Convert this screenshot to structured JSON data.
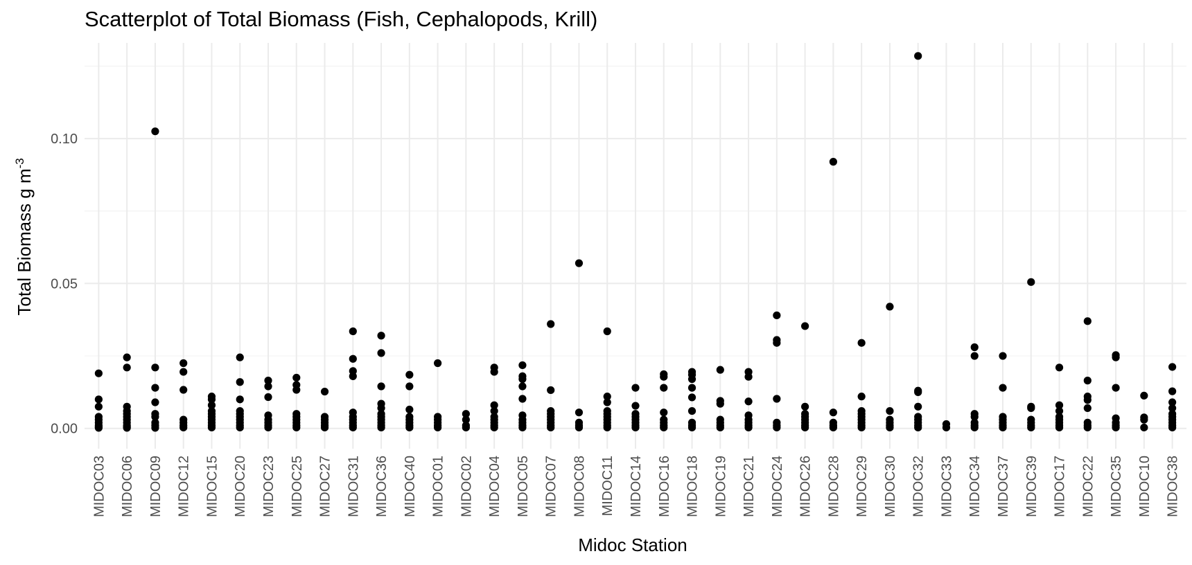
{
  "chart_data": {
    "type": "scatter",
    "title": "Scatterplot of Total Biomass (Fish, Cephalopods, Krill)",
    "xlabel": "Midoc Station",
    "ylabel": "Total Biomass g m",
    "ylabel_superscript": "-3",
    "ylim": [
      -0.007,
      0.133
    ],
    "y_ticks": [
      0.0,
      0.05,
      0.1
    ],
    "y_tick_labels": [
      "0.00",
      "0.05",
      "0.10"
    ],
    "y_minor_ticks": [
      0.025,
      0.075,
      0.125
    ],
    "grid": true,
    "legend": "none",
    "point_color": "#000000",
    "categories": [
      "MIDOC03",
      "MIDOC06",
      "MIDOC09",
      "MIDOC12",
      "MIDOC15",
      "MIDOC20",
      "MIDOC23",
      "MIDOC25",
      "MIDOC27",
      "MIDOC31",
      "MIDOC36",
      "MIDOC40",
      "MIDOC01",
      "MIDOC02",
      "MIDOC04",
      "MIDOC05",
      "MIDOC07",
      "MIDOC08",
      "MIDOC11",
      "MIDOC14",
      "MIDOC16",
      "MIDOC18",
      "MIDOC19",
      "MIDOC21",
      "MIDOC24",
      "MIDOC26",
      "MIDOC28",
      "MIDOC29",
      "MIDOC30",
      "MIDOC32",
      "MIDOC33",
      "MIDOC34",
      "MIDOC37",
      "MIDOC39",
      "MIDOC17",
      "MIDOC22",
      "MIDOC35",
      "MIDOC10",
      "MIDOC38"
    ],
    "values": [
      [
        0.019,
        0.01,
        0.0075,
        0.004,
        0.003,
        0.002,
        0.001,
        0.0005,
        0.0002
      ],
      [
        0.0245,
        0.021,
        0.0075,
        0.006,
        0.005,
        0.004,
        0.003,
        0.002,
        0.001,
        0.0005,
        0.0002
      ],
      [
        0.1025,
        0.021,
        0.014,
        0.009,
        0.005,
        0.004,
        0.002,
        0.001,
        0.0002
      ],
      [
        0.0225,
        0.0195,
        0.0133,
        0.003,
        0.002,
        0.001,
        0.0003
      ],
      [
        0.011,
        0.01,
        0.008,
        0.006,
        0.005,
        0.004,
        0.003,
        0.002,
        0.001,
        0.0003
      ],
      [
        0.0245,
        0.016,
        0.01,
        0.006,
        0.005,
        0.004,
        0.003,
        0.002,
        0.001,
        0.0003
      ],
      [
        0.0165,
        0.0145,
        0.0108,
        0.0045,
        0.003,
        0.002,
        0.001,
        0.0003
      ],
      [
        0.0175,
        0.015,
        0.0133,
        0.005,
        0.004,
        0.003,
        0.002,
        0.001,
        0.0003
      ],
      [
        0.0127,
        0.004,
        0.003,
        0.002,
        0.001,
        0.0003
      ],
      [
        0.0335,
        0.024,
        0.0198,
        0.018,
        0.0055,
        0.004,
        0.003,
        0.002,
        0.001,
        0.0003
      ],
      [
        0.032,
        0.026,
        0.0145,
        0.0085,
        0.007,
        0.005,
        0.004,
        0.003,
        0.002,
        0.001,
        0.0003
      ],
      [
        0.0185,
        0.0145,
        0.0065,
        0.004,
        0.003,
        0.002,
        0.001,
        0.0003
      ],
      [
        0.0225,
        0.004,
        0.003,
        0.002,
        0.001,
        0.0003
      ],
      [
        0.005,
        0.003,
        0.001,
        0.0003
      ],
      [
        0.021,
        0.0195,
        0.008,
        0.006,
        0.004,
        0.003,
        0.002,
        0.001,
        0.0003
      ],
      [
        0.0218,
        0.018,
        0.017,
        0.0145,
        0.0102,
        0.0045,
        0.003,
        0.002,
        0.001,
        0.0003
      ],
      [
        0.036,
        0.0132,
        0.006,
        0.005,
        0.004,
        0.003,
        0.002,
        0.001,
        0.0003
      ],
      [
        0.057,
        0.0055,
        0.002,
        0.001,
        0.0003
      ],
      [
        0.0335,
        0.011,
        0.009,
        0.006,
        0.005,
        0.004,
        0.003,
        0.002,
        0.001,
        0.0003
      ],
      [
        0.014,
        0.0078,
        0.005,
        0.004,
        0.003,
        0.002,
        0.001,
        0.0003
      ],
      [
        0.0187,
        0.0178,
        0.014,
        0.0055,
        0.003,
        0.002,
        0.001,
        0.0003
      ],
      [
        0.0195,
        0.0185,
        0.017,
        0.014,
        0.0107,
        0.006,
        0.002,
        0.001,
        0.0003
      ],
      [
        0.0202,
        0.0095,
        0.0085,
        0.003,
        0.002,
        0.001,
        0.0003
      ],
      [
        0.0195,
        0.0178,
        0.0093,
        0.0045,
        0.003,
        0.002,
        0.001,
        0.0003
      ],
      [
        0.039,
        0.0305,
        0.0295,
        0.0102,
        0.002,
        0.001,
        0.0003
      ],
      [
        0.0353,
        0.0075,
        0.005,
        0.004,
        0.003,
        0.002,
        0.001,
        0.0003
      ],
      [
        0.092,
        0.0055,
        0.002,
        0.001,
        0.0003
      ],
      [
        0.0295,
        0.011,
        0.006,
        0.005,
        0.004,
        0.003,
        0.002,
        0.001,
        0.0003
      ],
      [
        0.042,
        0.006,
        0.003,
        0.002,
        0.001,
        0.0003
      ],
      [
        0.1285,
        0.013,
        0.0125,
        0.0075,
        0.004,
        0.003,
        0.002,
        0.001,
        0.0003
      ],
      [
        0.0015,
        0.0003
      ],
      [
        0.028,
        0.025,
        0.005,
        0.004,
        0.002,
        0.001,
        0.0003
      ],
      [
        0.025,
        0.014,
        0.004,
        0.003,
        0.002,
        0.001,
        0.0003
      ],
      [
        0.0505,
        0.0075,
        0.007,
        0.003,
        0.002,
        0.001,
        0.0003
      ],
      [
        0.021,
        0.008,
        0.006,
        0.004,
        0.003,
        0.002,
        0.001,
        0.0003
      ],
      [
        0.037,
        0.0165,
        0.011,
        0.0098,
        0.007,
        0.002,
        0.001,
        0.0003
      ],
      [
        0.0253,
        0.0245,
        0.014,
        0.0035,
        0.002,
        0.001,
        0.0003
      ],
      [
        0.0113,
        0.0038,
        0.003,
        0.0003
      ],
      [
        0.0212,
        0.0128,
        0.009,
        0.007,
        0.005,
        0.004,
        0.003,
        0.002,
        0.001,
        0.0003
      ]
    ]
  }
}
